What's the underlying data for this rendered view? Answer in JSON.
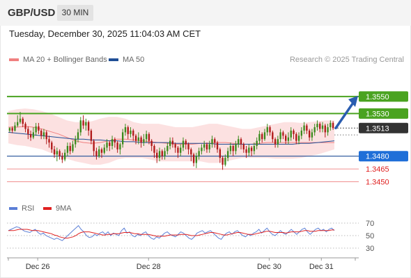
{
  "header": {
    "pair": "GBP/USD",
    "timeframe": "30 MIN",
    "datetime": "Tuesday, December 30, 2025 11:04:03 AM CET"
  },
  "legend": {
    "ma20": {
      "label": "MA 20 + Bollinger Bands",
      "color": "#f08080"
    },
    "ma50": {
      "label": "MA 50",
      "color": "#1f4e96"
    },
    "research": "Research © 2025 Trading Central"
  },
  "rsi_legend": {
    "rsi": {
      "label": "RSI",
      "color": "#5b7fd6"
    },
    "ma": {
      "label": "9MA",
      "color": "#e02020"
    }
  },
  "chart_data": {
    "type": "candlestick",
    "ylim": [
      1.343,
      1.3585
    ],
    "x_ticks": [
      "Dec 26",
      "Dec 28",
      "Dec 30",
      "Dec 31"
    ],
    "last_price": 1.3513,
    "levels": [
      {
        "value": 1.355,
        "label": "1.3550",
        "kind": "resistance"
      },
      {
        "value": 1.353,
        "label": "1.3530",
        "kind": "resistance"
      },
      {
        "value": 1.348,
        "label": "1.3480",
        "kind": "pivot"
      },
      {
        "value": 1.3465,
        "label": "1.3465",
        "kind": "support"
      },
      {
        "value": 1.345,
        "label": "1.3450",
        "kind": "support"
      }
    ],
    "candles": [
      [
        1.351,
        1.3513,
        1.3514,
        1.3508
      ],
      [
        1.3513,
        1.351,
        1.3515,
        1.3507
      ],
      [
        1.351,
        1.3516,
        1.352,
        1.3509
      ],
      [
        1.3516,
        1.352,
        1.3528,
        1.3514
      ],
      [
        1.352,
        1.3524,
        1.3532,
        1.3518
      ],
      [
        1.3524,
        1.3518,
        1.3526,
        1.3514
      ],
      [
        1.3518,
        1.3512,
        1.352,
        1.3508
      ],
      [
        1.3512,
        1.3506,
        1.3515,
        1.35
      ],
      [
        1.3506,
        1.3502,
        1.351,
        1.3498
      ],
      [
        1.3502,
        1.3508,
        1.3514,
        1.35
      ],
      [
        1.3508,
        1.3515,
        1.3519,
        1.3504
      ],
      [
        1.3515,
        1.351,
        1.3519,
        1.3506
      ],
      [
        1.351,
        1.3504,
        1.3512,
        1.35
      ],
      [
        1.3504,
        1.3508,
        1.3512,
        1.35
      ],
      [
        1.3508,
        1.35,
        1.351,
        1.3494
      ],
      [
        1.35,
        1.3496,
        1.3504,
        1.349
      ],
      [
        1.3496,
        1.3488,
        1.3498,
        1.3484
      ],
      [
        1.3488,
        1.3482,
        1.3492,
        1.3478
      ],
      [
        1.3482,
        1.3486,
        1.349,
        1.3474
      ],
      [
        1.3486,
        1.348,
        1.3488,
        1.3476
      ],
      [
        1.348,
        1.3476,
        1.3484,
        1.3472
      ],
      [
        1.3476,
        1.3484,
        1.3488,
        1.3474
      ],
      [
        1.3484,
        1.3492,
        1.3496,
        1.348
      ],
      [
        1.3492,
        1.3486,
        1.3496,
        1.3482
      ],
      [
        1.3486,
        1.3494,
        1.3498,
        1.3484
      ],
      [
        1.3494,
        1.35,
        1.3504,
        1.349
      ],
      [
        1.35,
        1.3508,
        1.3512,
        1.3496
      ],
      [
        1.3508,
        1.3522,
        1.3526,
        1.3504
      ],
      [
        1.3522,
        1.3516,
        1.3528,
        1.3512
      ],
      [
        1.3516,
        1.352,
        1.3524,
        1.351
      ],
      [
        1.352,
        1.351,
        1.3522,
        1.3504
      ],
      [
        1.351,
        1.3498,
        1.3512,
        1.3494
      ],
      [
        1.3498,
        1.3486,
        1.35,
        1.348
      ],
      [
        1.3486,
        1.348,
        1.349,
        1.3476
      ],
      [
        1.348,
        1.3488,
        1.3492,
        1.3478
      ],
      [
        1.3488,
        1.3484,
        1.349,
        1.3478
      ],
      [
        1.3484,
        1.349,
        1.3494,
        1.3482
      ],
      [
        1.349,
        1.3496,
        1.35,
        1.3486
      ],
      [
        1.3496,
        1.3492,
        1.3498,
        1.3486
      ],
      [
        1.3492,
        1.35,
        1.3504,
        1.3488
      ],
      [
        1.35,
        1.3496,
        1.3502,
        1.349
      ],
      [
        1.3496,
        1.3488,
        1.3498,
        1.3484
      ],
      [
        1.3488,
        1.3494,
        1.3496,
        1.3482
      ],
      [
        1.3494,
        1.3508,
        1.3512,
        1.349
      ],
      [
        1.3508,
        1.3514,
        1.3518,
        1.3504
      ],
      [
        1.3514,
        1.3506,
        1.3516,
        1.35
      ],
      [
        1.3506,
        1.351,
        1.3514,
        1.3502
      ],
      [
        1.351,
        1.3504,
        1.3512,
        1.3498
      ],
      [
        1.3504,
        1.3498,
        1.3506,
        1.3494
      ],
      [
        1.3498,
        1.3502,
        1.3508,
        1.3494
      ],
      [
        1.3502,
        1.3496,
        1.3504,
        1.349
      ],
      [
        1.3496,
        1.35,
        1.3506,
        1.3492
      ],
      [
        1.35,
        1.3506,
        1.351,
        1.3496
      ],
      [
        1.3506,
        1.3498,
        1.3508,
        1.3494
      ],
      [
        1.3498,
        1.3492,
        1.35,
        1.3486
      ],
      [
        1.3492,
        1.3484,
        1.3494,
        1.3478
      ],
      [
        1.3484,
        1.3478,
        1.3488,
        1.3472
      ],
      [
        1.3478,
        1.3486,
        1.349,
        1.3474
      ],
      [
        1.3486,
        1.348,
        1.3488,
        1.3476
      ],
      [
        1.348,
        1.3486,
        1.349,
        1.3476
      ],
      [
        1.3486,
        1.3492,
        1.3496,
        1.3482
      ],
      [
        1.3492,
        1.3498,
        1.3502,
        1.3488
      ],
      [
        1.3498,
        1.3494,
        1.3502,
        1.349
      ],
      [
        1.3494,
        1.349,
        1.3496,
        1.3484
      ],
      [
        1.349,
        1.3484,
        1.3492,
        1.3478
      ],
      [
        1.3484,
        1.349,
        1.3494,
        1.348
      ],
      [
        1.349,
        1.3498,
        1.3502,
        1.3486
      ],
      [
        1.3498,
        1.3494,
        1.35,
        1.3488
      ],
      [
        1.3494,
        1.3488,
        1.3496,
        1.3482
      ],
      [
        1.3488,
        1.3482,
        1.349,
        1.3474
      ],
      [
        1.3482,
        1.3472,
        1.3484,
        1.3468
      ],
      [
        1.3472,
        1.348,
        1.3484,
        1.3466
      ],
      [
        1.348,
        1.3486,
        1.349,
        1.3476
      ],
      [
        1.3486,
        1.349,
        1.3494,
        1.3482
      ],
      [
        1.349,
        1.3494,
        1.3498,
        1.3486
      ],
      [
        1.3494,
        1.3488,
        1.3496,
        1.3484
      ],
      [
        1.3488,
        1.3494,
        1.3498,
        1.3484
      ],
      [
        1.3494,
        1.35,
        1.3504,
        1.349
      ],
      [
        1.35,
        1.3496,
        1.3502,
        1.349
      ],
      [
        1.3496,
        1.3488,
        1.3498,
        1.3484
      ],
      [
        1.3488,
        1.3478,
        1.349,
        1.3472
      ],
      [
        1.3478,
        1.347,
        1.348,
        1.3464
      ],
      [
        1.347,
        1.3478,
        1.3482,
        1.3468
      ],
      [
        1.3478,
        1.3486,
        1.349,
        1.3474
      ],
      [
        1.3486,
        1.3492,
        1.3496,
        1.3482
      ],
      [
        1.3492,
        1.3486,
        1.3494,
        1.348
      ],
      [
        1.3486,
        1.3494,
        1.3498,
        1.3482
      ],
      [
        1.3494,
        1.35,
        1.3504,
        1.349
      ],
      [
        1.35,
        1.3494,
        1.3502,
        1.3488
      ],
      [
        1.3494,
        1.3488,
        1.3496,
        1.3484
      ],
      [
        1.3488,
        1.3484,
        1.3492,
        1.3478
      ],
      [
        1.3484,
        1.349,
        1.3494,
        1.348
      ],
      [
        1.349,
        1.3486,
        1.3492,
        1.348
      ],
      [
        1.3486,
        1.3492,
        1.3496,
        1.3482
      ],
      [
        1.3492,
        1.3498,
        1.3502,
        1.3488
      ],
      [
        1.3498,
        1.3506,
        1.351,
        1.3494
      ],
      [
        1.3506,
        1.35,
        1.3508,
        1.3496
      ],
      [
        1.35,
        1.3508,
        1.3512,
        1.3498
      ],
      [
        1.3508,
        1.3514,
        1.3518,
        1.3504
      ],
      [
        1.3514,
        1.3508,
        1.3516,
        1.3504
      ],
      [
        1.3508,
        1.35,
        1.351,
        1.3496
      ],
      [
        1.35,
        1.3494,
        1.3502,
        1.349
      ],
      [
        1.3494,
        1.35,
        1.3504,
        1.349
      ],
      [
        1.35,
        1.3508,
        1.3512,
        1.3496
      ],
      [
        1.3508,
        1.3504,
        1.351,
        1.35
      ],
      [
        1.3504,
        1.3498,
        1.3506,
        1.3494
      ],
      [
        1.3498,
        1.3502,
        1.3508,
        1.3494
      ],
      [
        1.3502,
        1.351,
        1.3514,
        1.3498
      ],
      [
        1.351,
        1.3506,
        1.3512,
        1.35
      ],
      [
        1.3506,
        1.3498,
        1.3508,
        1.3494
      ],
      [
        1.3498,
        1.3504,
        1.3508,
        1.3494
      ],
      [
        1.3504,
        1.351,
        1.3514,
        1.35
      ],
      [
        1.351,
        1.3516,
        1.352,
        1.3506
      ],
      [
        1.3516,
        1.351,
        1.3518,
        1.3506
      ],
      [
        1.351,
        1.3502,
        1.3512,
        1.3498
      ],
      [
        1.3502,
        1.3508,
        1.3512,
        1.3498
      ],
      [
        1.3508,
        1.3514,
        1.3518,
        1.3504
      ],
      [
        1.3514,
        1.3518,
        1.3522,
        1.351
      ],
      [
        1.3518,
        1.3512,
        1.352,
        1.3508
      ],
      [
        1.3512,
        1.3516,
        1.352,
        1.3508
      ],
      [
        1.3516,
        1.3508,
        1.3518,
        1.3502
      ],
      [
        1.3508,
        1.3514,
        1.3518,
        1.3504
      ],
      [
        1.3514,
        1.3519,
        1.3522,
        1.351
      ],
      [
        1.3519,
        1.3513,
        1.3521,
        1.3511
      ]
    ],
    "bollinger": {
      "ma": [
        1.3514,
        1.3514,
        1.3515,
        1.3514,
        1.3512,
        1.3509,
        1.3506,
        1.3502,
        1.3498,
        1.3496,
        1.3495,
        1.3496,
        1.3498,
        1.35,
        1.35,
        1.3499,
        1.3498,
        1.3497,
        1.3496,
        1.3495,
        1.3494,
        1.3494,
        1.3494,
        1.3495,
        1.3495,
        1.3496,
        1.3496,
        1.3495,
        1.3494,
        1.3494,
        1.3495,
        1.3496,
        1.3496,
        1.3496,
        1.3496,
        1.3496,
        1.3496,
        1.3496,
        1.3496,
        1.3496
      ],
      "upper": [
        1.3533,
        1.3535,
        1.3536,
        1.3535,
        1.3533,
        1.353,
        1.3526,
        1.3522,
        1.352,
        1.352,
        1.3521,
        1.3524,
        1.3526,
        1.3526,
        1.3524,
        1.352,
        1.3518,
        1.3518,
        1.3518,
        1.3516,
        1.3514,
        1.3514,
        1.3514,
        1.3516,
        1.3518,
        1.3518,
        1.3516,
        1.3514,
        1.3512,
        1.3512,
        1.3514,
        1.3516,
        1.3518,
        1.352,
        1.352,
        1.3519,
        1.352,
        1.3521,
        1.3522,
        1.3522
      ],
      "lower": [
        1.3495,
        1.3493,
        1.3492,
        1.349,
        1.3488,
        1.3484,
        1.348,
        1.3477,
        1.3474,
        1.3472,
        1.347,
        1.347,
        1.3472,
        1.3476,
        1.3478,
        1.3478,
        1.3478,
        1.3476,
        1.3474,
        1.3474,
        1.3474,
        1.3474,
        1.3474,
        1.3474,
        1.3472,
        1.3472,
        1.3474,
        1.3476,
        1.3478,
        1.3478,
        1.3478,
        1.3478,
        1.3477,
        1.3477,
        1.3477,
        1.3478,
        1.348,
        1.3482,
        1.3485,
        1.3488
      ]
    },
    "ma50": [
      1.3508,
      1.3507,
      1.3506,
      1.3505,
      1.3504,
      1.3503,
      1.3502,
      1.3501,
      1.35,
      1.35,
      1.3499,
      1.3499,
      1.3498,
      1.3498,
      1.3497,
      1.3497,
      1.3496,
      1.3496,
      1.3496,
      1.3496,
      1.3495,
      1.3495,
      1.3495,
      1.3495,
      1.3495,
      1.3494,
      1.3494,
      1.3494,
      1.3494,
      1.3494,
      1.3494,
      1.3494,
      1.3494,
      1.3494,
      1.3494,
      1.3495,
      1.3495,
      1.3496,
      1.3497,
      1.3498
    ],
    "projection": {
      "from": 1.3513,
      "to": 1.355
    },
    "rsi": {
      "levels": [
        70,
        50,
        30
      ],
      "ylim": [
        20,
        80
      ],
      "rsi": [
        58,
        60,
        62,
        64,
        63,
        60,
        57,
        56,
        55,
        58,
        60,
        55,
        52,
        54,
        50,
        48,
        46,
        44,
        46,
        44,
        42,
        46,
        50,
        54,
        58,
        62,
        66,
        60,
        56,
        50,
        47,
        48,
        52,
        50,
        54,
        56,
        52,
        56,
        50,
        54,
        52,
        50,
        58,
        62,
        54,
        56,
        50,
        48,
        52,
        50,
        54,
        56,
        50,
        46,
        44,
        48,
        46,
        50,
        54,
        56,
        52,
        50,
        48,
        52,
        56,
        54,
        50,
        46,
        44,
        48,
        54,
        56,
        58,
        54,
        56,
        58,
        54,
        50,
        46,
        44,
        50,
        54,
        56,
        52,
        56,
        58,
        54,
        50,
        48,
        52,
        50,
        54,
        56,
        60,
        54,
        58,
        62,
        56,
        52,
        50,
        54,
        58,
        54,
        52,
        56,
        60,
        56,
        52,
        56,
        60,
        62,
        56,
        52,
        56,
        60,
        62,
        58,
        60,
        56,
        60,
        62,
        58
      ],
      "ma9": [
        58,
        58,
        58,
        59,
        60,
        60,
        60,
        60,
        59,
        58,
        58,
        58,
        57,
        56,
        55,
        54,
        53,
        51,
        50,
        48,
        47,
        46,
        46,
        47,
        48,
        50,
        53,
        55,
        56,
        56,
        56,
        55,
        54,
        53,
        52,
        51,
        51,
        52,
        52,
        53,
        53,
        53,
        54,
        55,
        55,
        55,
        54,
        53,
        53,
        52,
        52,
        52,
        52,
        51,
        50,
        49,
        49,
        49,
        49,
        50,
        51,
        51,
        51,
        51,
        52,
        52,
        52,
        51,
        50,
        50,
        50,
        51,
        52,
        53,
        54,
        55,
        55,
        54,
        53,
        52,
        51,
        51,
        52,
        53,
        54,
        55,
        55,
        54,
        53,
        52,
        52,
        52,
        53,
        54,
        55,
        56,
        57,
        57,
        56,
        55,
        55,
        55,
        55,
        54,
        55,
        56,
        56,
        56,
        56,
        57,
        58,
        58,
        57,
        57,
        57,
        58,
        58,
        58,
        58,
        58,
        59,
        59
      ]
    }
  }
}
